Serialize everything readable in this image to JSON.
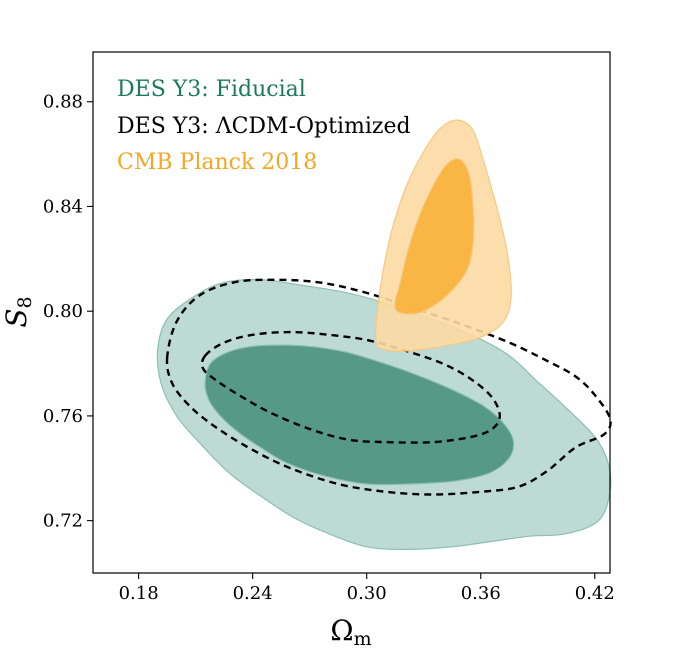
{
  "chart_data": {
    "type": "contour",
    "title": "",
    "xlabel": "Ω",
    "xlabel_sub": "m",
    "ylabel": "S",
    "ylabel_sub": "8",
    "xlim": [
      0.156,
      0.428
    ],
    "ylim": [
      0.7,
      0.899
    ],
    "x_ticks": [
      0.18,
      0.24,
      0.3,
      0.36,
      0.42
    ],
    "x_tick_labels": [
      "0.18",
      "0.24",
      "0.30",
      "0.36",
      "0.42"
    ],
    "y_ticks": [
      0.72,
      0.76,
      0.8,
      0.84,
      0.88
    ],
    "y_tick_labels": [
      "0.72",
      "0.76",
      "0.80",
      "0.84",
      "0.88"
    ],
    "legend": {
      "placement": "top-left",
      "entries": [
        {
          "label": "DES Y3: Fiducial",
          "color": "#1a7a5c"
        },
        {
          "label": "DES Y3: ΛCDM-Optimized",
          "color": "#000000"
        },
        {
          "label": "CMB Planck 2018",
          "color": "#f5a623"
        }
      ]
    },
    "series": [
      {
        "name": "DES Y3: Fiducial",
        "style": "filled",
        "fill_outer": "#b6d7cf",
        "fill_inner": "#4f9682",
        "stroke": "#8cbfb1",
        "contours": {
          "68%": [
            [
              0.219,
              0.781
            ],
            [
              0.235,
              0.786
            ],
            [
              0.26,
              0.787
            ],
            [
              0.285,
              0.785
            ],
            [
              0.305,
              0.781
            ],
            [
              0.325,
              0.776
            ],
            [
              0.345,
              0.77
            ],
            [
              0.361,
              0.764
            ],
            [
              0.371,
              0.758
            ],
            [
              0.377,
              0.751
            ],
            [
              0.375,
              0.744
            ],
            [
              0.364,
              0.738
            ],
            [
              0.345,
              0.735
            ],
            [
              0.322,
              0.734
            ],
            [
              0.3,
              0.734
            ],
            [
              0.278,
              0.737
            ],
            [
              0.258,
              0.742
            ],
            [
              0.244,
              0.748
            ],
            [
              0.232,
              0.754
            ],
            [
              0.223,
              0.76
            ],
            [
              0.217,
              0.766
            ],
            [
              0.215,
              0.773
            ]
          ],
          "95%": [
            [
              0.19,
              0.785
            ],
            [
              0.195,
              0.797
            ],
            [
              0.21,
              0.806
            ],
            [
              0.225,
              0.811
            ],
            [
              0.245,
              0.812
            ],
            [
              0.265,
              0.81
            ],
            [
              0.29,
              0.807
            ],
            [
              0.31,
              0.803
            ],
            [
              0.33,
              0.798
            ],
            [
              0.355,
              0.791
            ],
            [
              0.375,
              0.783
            ],
            [
              0.39,
              0.773
            ],
            [
              0.405,
              0.763
            ],
            [
              0.42,
              0.752
            ],
            [
              0.427,
              0.742
            ],
            [
              0.428,
              0.731
            ],
            [
              0.422,
              0.72
            ],
            [
              0.405,
              0.715
            ],
            [
              0.385,
              0.714
            ],
            [
              0.365,
              0.712
            ],
            [
              0.345,
              0.71
            ],
            [
              0.32,
              0.709
            ],
            [
              0.3,
              0.71
            ],
            [
              0.28,
              0.715
            ],
            [
              0.262,
              0.721
            ],
            [
              0.245,
              0.729
            ],
            [
              0.228,
              0.738
            ],
            [
              0.213,
              0.749
            ],
            [
              0.2,
              0.76
            ],
            [
              0.192,
              0.772
            ]
          ]
        }
      },
      {
        "name": "DES Y3: ΛCDM-Optimized",
        "style": "dashed",
        "stroke": "#000000",
        "contours": {
          "68%": [
            [
              0.215,
              0.783
            ],
            [
              0.225,
              0.788
            ],
            [
              0.24,
              0.791
            ],
            [
              0.26,
              0.792
            ],
            [
              0.28,
              0.791
            ],
            [
              0.3,
              0.789
            ],
            [
              0.32,
              0.785
            ],
            [
              0.34,
              0.78
            ],
            [
              0.355,
              0.774
            ],
            [
              0.366,
              0.767
            ],
            [
              0.37,
              0.76
            ],
            [
              0.366,
              0.755
            ],
            [
              0.355,
              0.752
            ],
            [
              0.335,
              0.75
            ],
            [
              0.31,
              0.75
            ],
            [
              0.29,
              0.751
            ],
            [
              0.27,
              0.755
            ],
            [
              0.25,
              0.761
            ],
            [
              0.235,
              0.767
            ],
            [
              0.222,
              0.773
            ],
            [
              0.214,
              0.778
            ]
          ],
          "95%": [
            [
              0.195,
              0.782
            ],
            [
              0.2,
              0.796
            ],
            [
              0.212,
              0.806
            ],
            [
              0.23,
              0.811
            ],
            [
              0.25,
              0.812
            ],
            [
              0.275,
              0.811
            ],
            [
              0.3,
              0.807
            ],
            [
              0.325,
              0.801
            ],
            [
              0.35,
              0.795
            ],
            [
              0.375,
              0.788
            ],
            [
              0.395,
              0.781
            ],
            [
              0.41,
              0.775
            ],
            [
              0.42,
              0.768
            ],
            [
              0.428,
              0.759
            ],
            [
              0.425,
              0.753
            ],
            [
              0.41,
              0.748
            ],
            [
              0.395,
              0.739
            ],
            [
              0.38,
              0.733
            ],
            [
              0.36,
              0.731
            ],
            [
              0.335,
              0.73
            ],
            [
              0.31,
              0.731
            ],
            [
              0.285,
              0.734
            ],
            [
              0.26,
              0.74
            ],
            [
              0.24,
              0.747
            ],
            [
              0.222,
              0.755
            ],
            [
              0.208,
              0.763
            ],
            [
              0.198,
              0.772
            ]
          ]
        }
      },
      {
        "name": "CMB Planck 2018",
        "style": "filled",
        "fill_outer": "#fcd9a3",
        "fill_inner": "#fab33f",
        "stroke": "#f6c980",
        "contours": {
          "68%": [
            [
              0.315,
              0.801
            ],
            [
              0.318,
              0.812
            ],
            [
              0.322,
              0.824
            ],
            [
              0.328,
              0.837
            ],
            [
              0.335,
              0.848
            ],
            [
              0.342,
              0.856
            ],
            [
              0.349,
              0.858
            ],
            [
              0.354,
              0.852
            ],
            [
              0.356,
              0.84
            ],
            [
              0.356,
              0.826
            ],
            [
              0.353,
              0.816
            ],
            [
              0.345,
              0.808
            ],
            [
              0.335,
              0.802
            ],
            [
              0.325,
              0.799
            ]
          ],
          "95%": [
            [
              0.305,
              0.788
            ],
            [
              0.306,
              0.802
            ],
            [
              0.309,
              0.817
            ],
            [
              0.314,
              0.833
            ],
            [
              0.321,
              0.848
            ],
            [
              0.33,
              0.861
            ],
            [
              0.339,
              0.87
            ],
            [
              0.348,
              0.873
            ],
            [
              0.356,
              0.869
            ],
            [
              0.362,
              0.856
            ],
            [
              0.369,
              0.838
            ],
            [
              0.374,
              0.822
            ],
            [
              0.376,
              0.806
            ],
            [
              0.372,
              0.796
            ],
            [
              0.36,
              0.79
            ],
            [
              0.343,
              0.787
            ],
            [
              0.325,
              0.785
            ],
            [
              0.312,
              0.785
            ]
          ]
        }
      }
    ]
  }
}
